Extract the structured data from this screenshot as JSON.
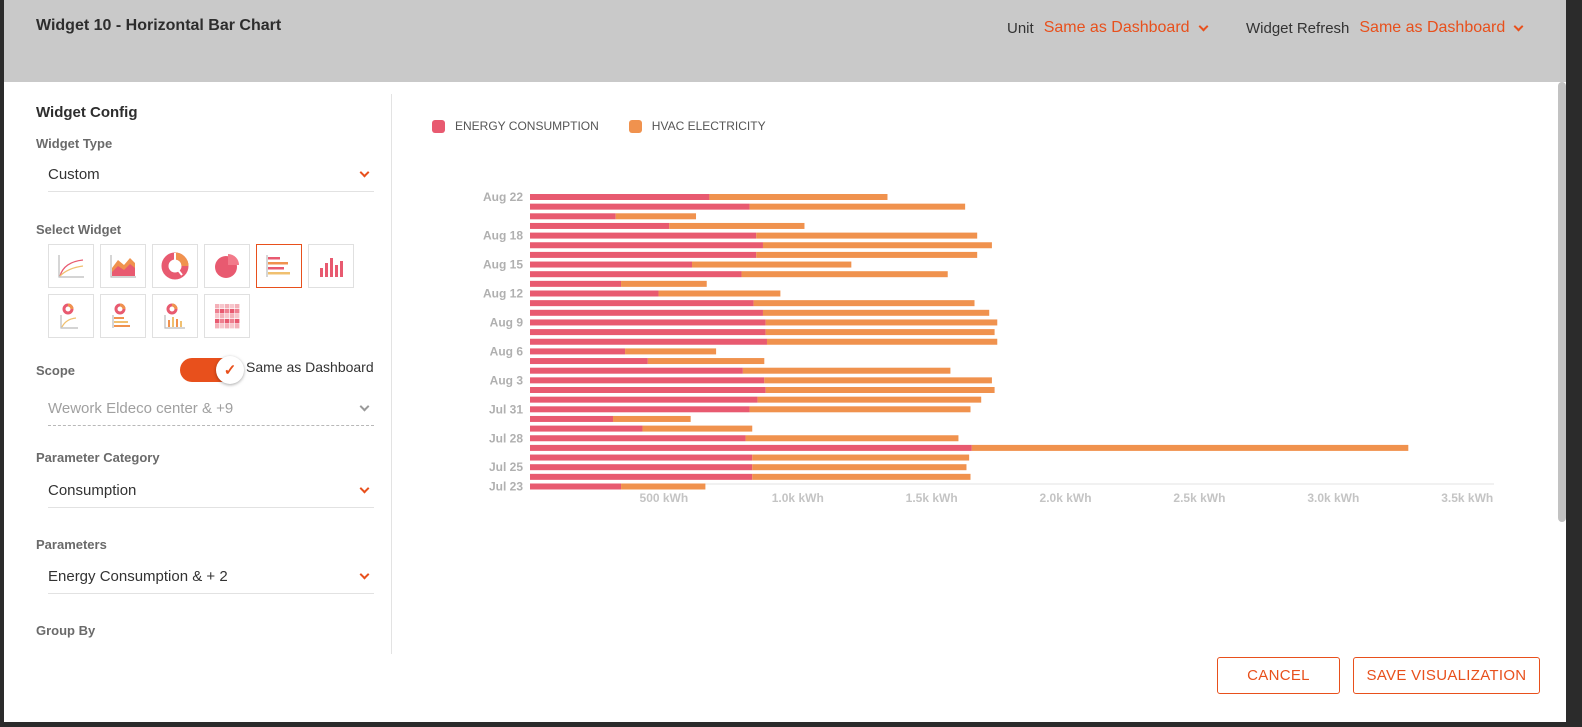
{
  "header": {
    "title": "Widget 10 - Horizontal Bar Chart",
    "unit_label": "Unit",
    "unit_value": "Same as Dashboard",
    "refresh_label": "Widget Refresh",
    "refresh_value": "Same as Dashboard"
  },
  "config": {
    "title": "Widget Config",
    "widget_type_label": "Widget Type",
    "widget_type_value": "Custom",
    "select_widget_label": "Select Widget",
    "scope_label": "Scope",
    "scope_toggle_label": "Same as Dashboard",
    "scope_value": "Wework Eldeco center & +9",
    "param_category_label": "Parameter Category",
    "param_category_value": "Consumption",
    "parameters_label": "Parameters",
    "parameters_value": "Energy Consumption & + 2",
    "group_by_label": "Group By"
  },
  "widget_icons": [
    "line-chart-icon",
    "area-chart-icon",
    "donut-chart-icon",
    "pie-chart-icon",
    "horizontal-bar-chart-icon",
    "vertical-bar-chart-icon",
    "donut-line-combo-icon",
    "donut-hbar-combo-icon",
    "donut-vbar-combo-icon",
    "heatmap-icon"
  ],
  "selected_widget": "horizontal-bar-chart-icon",
  "colors": {
    "accent": "#e8501c",
    "energy": "#e85a70",
    "hvac": "#f0924e"
  },
  "buttons": {
    "cancel": "CANCEL",
    "save": "SAVE VISUALIZATION"
  },
  "chart_data": {
    "type": "bar",
    "orientation": "horizontal",
    "stacked": true,
    "legend_position": "top-left",
    "series": [
      {
        "name": "ENERGY CONSUMPTION",
        "values": [
          670,
          820,
          320,
          520,
          845,
          870,
          845,
          605,
          790,
          340,
          480,
          835,
          870,
          880,
          880,
          885,
          355,
          440,
          795,
          875,
          880,
          850,
          820,
          310,
          420,
          805,
          1650,
          830,
          830,
          830,
          340
        ]
      },
      {
        "name": "HVAC ELECTRICITY",
        "values": [
          665,
          805,
          300,
          505,
          825,
          855,
          825,
          595,
          770,
          320,
          455,
          825,
          845,
          865,
          855,
          860,
          340,
          435,
          775,
          850,
          855,
          835,
          825,
          290,
          410,
          795,
          1630,
          810,
          800,
          815,
          315
        ]
      }
    ],
    "tick_labels": [
      "Aug 22",
      "Aug 18",
      "Aug 15",
      "Aug 12",
      "Aug 9",
      "Aug 6",
      "Aug 3",
      "Jul 31",
      "Jul 28",
      "Jul 25",
      "Jul 23"
    ],
    "tick_rows": [
      0,
      4,
      7,
      10,
      13,
      16,
      19,
      22,
      25,
      28,
      30
    ],
    "x_ticks": [
      "500 kWh",
      "1.0k kWh",
      "1.5k kWh",
      "2.0k kWh",
      "2.5k kWh",
      "3.0k kWh",
      "3.5k kWh"
    ],
    "x_tick_values": [
      500,
      1000,
      1500,
      2000,
      2500,
      3000,
      3500
    ],
    "xlim": [
      0,
      3600
    ]
  }
}
